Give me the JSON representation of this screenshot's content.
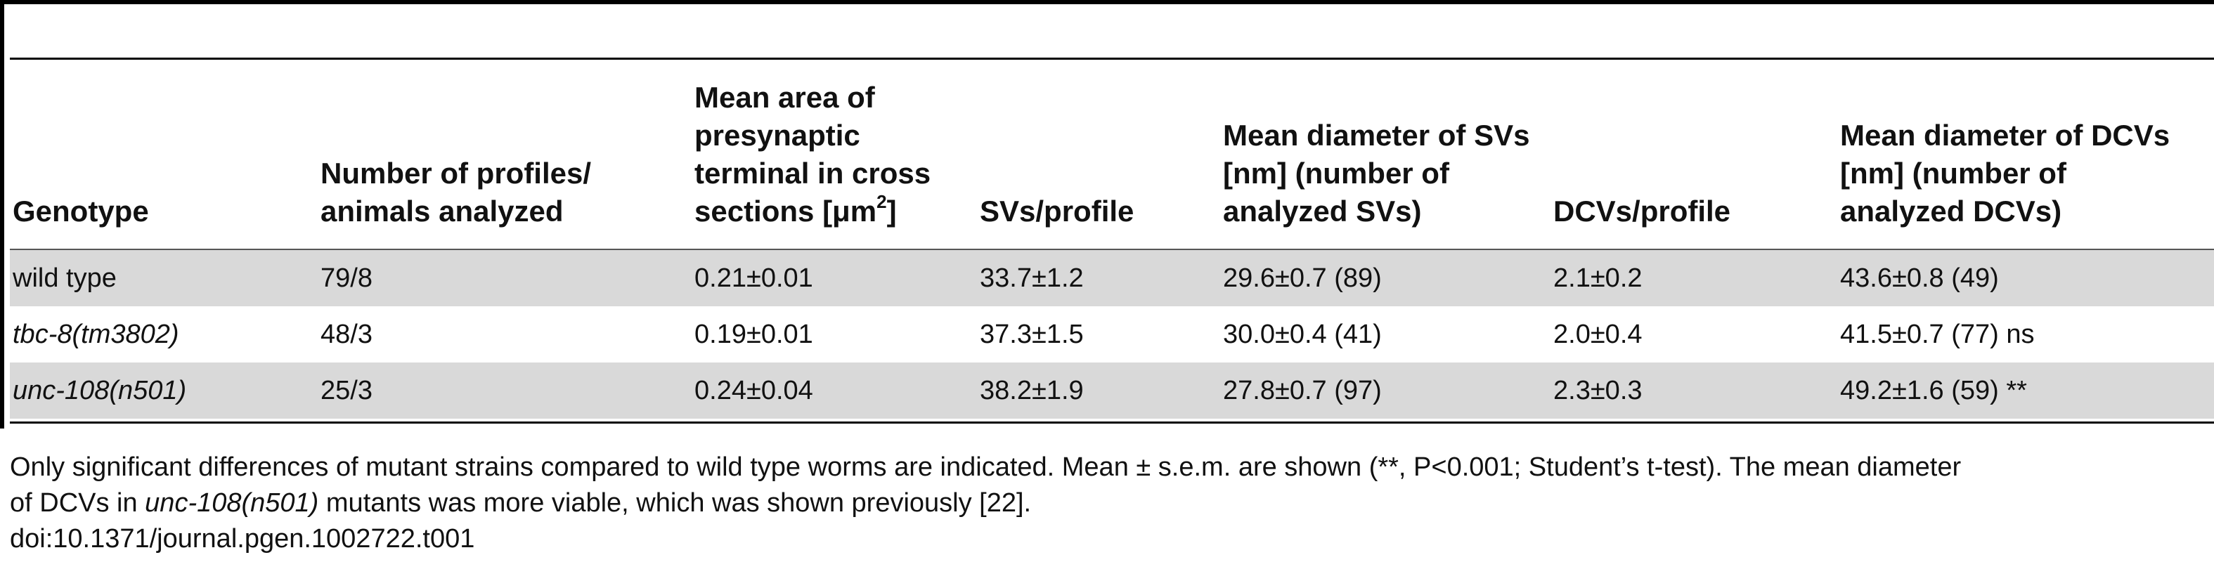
{
  "headers": {
    "genotype": "Genotype",
    "profiles": [
      "Number of profiles/",
      "animals analyzed"
    ],
    "area": [
      "Mean area of",
      "presynaptic",
      "terminal in cross",
      "sections [μm",
      "2",
      "]"
    ],
    "svs_profile": "SVs/profile",
    "sv_diam": [
      "Mean diameter of SVs",
      "[nm] (number of",
      "analyzed SVs)"
    ],
    "dcvs_profile": "DCVs/profile",
    "dcv_diam": [
      "Mean diameter of DCVs",
      "[nm] (number of",
      "analyzed DCVs)"
    ]
  },
  "rows": [
    {
      "genotype": "wild type",
      "profiles": "79/8",
      "area": "0.21±0.01",
      "svs": "33.7±1.2",
      "sv_diam": "29.6±0.7 (89)",
      "dcvs": "2.1±0.2",
      "dcv_diam": "43.6±0.8 (49)"
    },
    {
      "genotype": "tbc-8(tm3802)",
      "profiles": "48/3",
      "area": "0.19±0.01",
      "svs": "37.3±1.5",
      "sv_diam": "30.0±0.4 (41)",
      "dcvs": "2.0±0.4",
      "dcv_diam": "41.5±0.7 (77) ns"
    },
    {
      "genotype": "unc-108(n501)",
      "profiles": "25/3",
      "area": "0.24±0.04",
      "svs": "38.2±1.9",
      "sv_diam": "27.8±0.7 (97)",
      "dcvs": "2.3±0.3",
      "dcv_diam": "49.2±1.6 (59) **"
    }
  ],
  "footnote": {
    "part1": "Only significant differences of mutant strains compared to wild type worms are indicated. Mean ± s.e.m. are shown (**, P<0.001; Student’s t-test). The mean diameter",
    "part2": "of DCVs in ",
    "italic": "unc-108(n501)",
    "part3": " mutants was more viable, which was shown previously [22]."
  },
  "doi": "doi:10.1371/journal.pgen.1002722.t001"
}
